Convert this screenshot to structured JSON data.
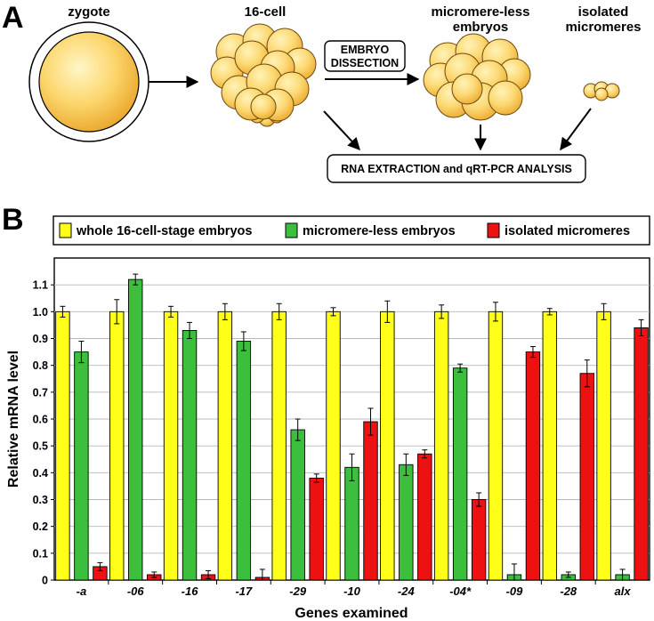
{
  "panel_a": {
    "letter": "A",
    "stages": {
      "zygote": "zygote",
      "sixteen_cell": "16-cell",
      "micromere_less_line1": "micromere-less",
      "micromere_less_line2": "embryos",
      "isolated_line1": "isolated",
      "isolated_line2": "micromeres"
    },
    "dissection_line1": "EMBRYO",
    "dissection_line2": "DISSECTION",
    "analysis": "RNA EXTRACTION and qRT-PCR ANALYSIS"
  },
  "panel_b": {
    "letter": "B"
  },
  "colors": {
    "whole": "#ffff1a",
    "less": "#3cbf3c",
    "micro": "#ee1111",
    "cell_light": "#fff2b0",
    "cell_dark": "#f2b93c"
  },
  "chart_data": {
    "type": "bar",
    "xlabel": "Genes examined",
    "ylabel": "Relative mRNA  level",
    "ylim": [
      0,
      1.2
    ],
    "yticks": [
      0,
      0.1,
      0.2,
      0.3,
      0.4,
      0.5,
      0.6,
      0.7,
      0.8,
      0.9,
      1.0,
      1.1
    ],
    "ytick_labels": [
      "0",
      "0.1",
      "0.2",
      "0.3",
      "0.4",
      "0.5",
      "0.6",
      "0.7",
      "0.8",
      "0.9",
      "1.0",
      "1.1"
    ],
    "grid": true,
    "legend_position": "top",
    "categories": [
      "-a",
      "-06",
      "-16",
      "-17",
      "-29",
      "-10",
      "-24",
      "-04*",
      "-09",
      "-28",
      "alx"
    ],
    "series": [
      {
        "name": "whole 16-cell-stage embryos",
        "color": "#ffff1a",
        "values": [
          1.0,
          1.0,
          1.0,
          1.0,
          1.0,
          1.0,
          1.0,
          1.0,
          1.0,
          1.0,
          1.0
        ],
        "errors": [
          0.02,
          0.045,
          0.02,
          0.03,
          0.03,
          0.015,
          0.04,
          0.025,
          0.035,
          0.012,
          0.03
        ]
      },
      {
        "name": "micromere-less embryos",
        "color": "#3cbf3c",
        "values": [
          0.85,
          1.12,
          0.93,
          0.89,
          0.56,
          0.42,
          0.43,
          0.79,
          0.02,
          0.02,
          0.02
        ],
        "errors": [
          0.04,
          0.02,
          0.03,
          0.035,
          0.04,
          0.05,
          0.04,
          0.015,
          0.04,
          0.01,
          0.02
        ]
      },
      {
        "name": "isolated micromeres",
        "color": "#ee1111",
        "values": [
          0.05,
          0.02,
          0.02,
          0.01,
          0.38,
          0.59,
          0.47,
          0.3,
          0.85,
          0.77,
          0.94
        ],
        "errors": [
          0.015,
          0.01,
          0.015,
          0.03,
          0.015,
          0.05,
          0.015,
          0.025,
          0.02,
          0.05,
          0.03
        ]
      }
    ]
  }
}
